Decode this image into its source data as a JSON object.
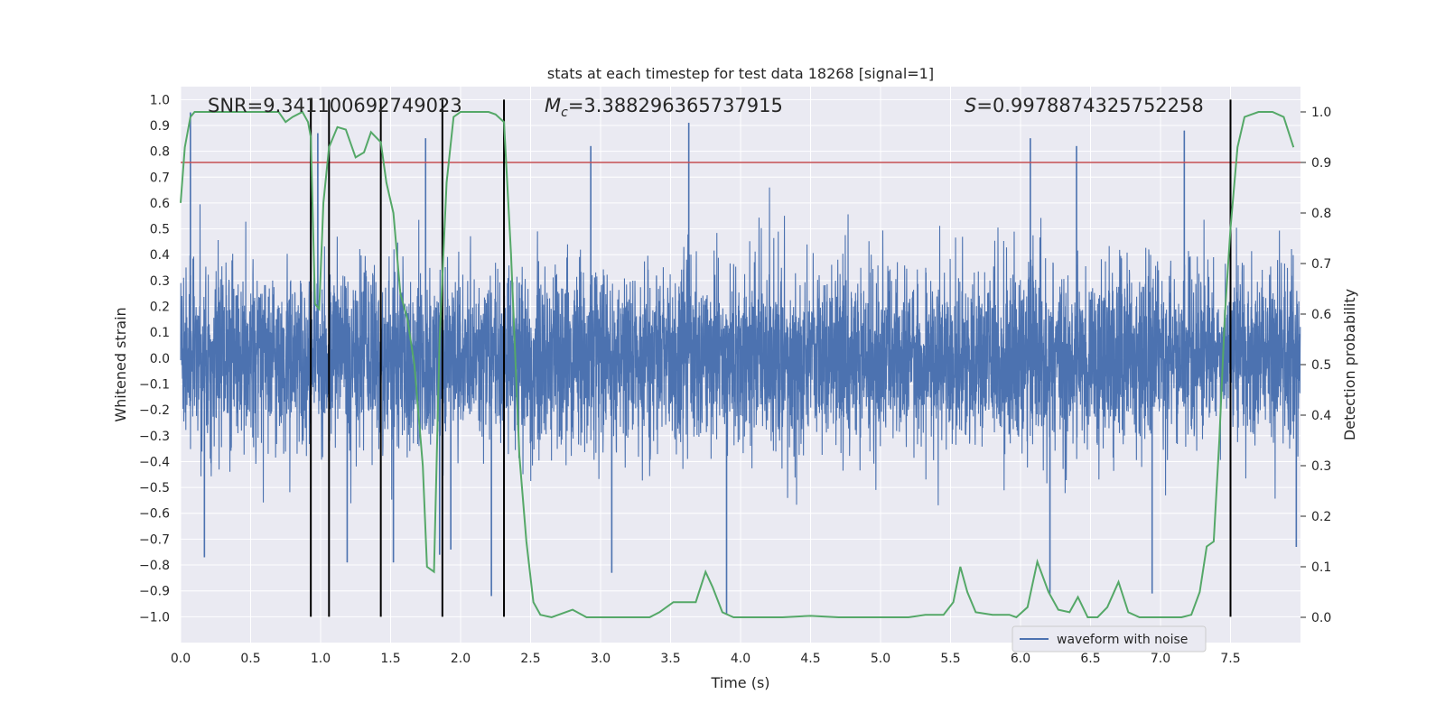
{
  "chart_data": {
    "type": "line",
    "title": "stats at each timestep for test data 18268 [signal=1]",
    "xlabel": "Time (s)",
    "ylabel": "Whitened strain",
    "y2label": "Detection probability",
    "xlim": [
      0.0,
      8.0
    ],
    "ylim": [
      -1.1,
      1.05
    ],
    "y2lim": [
      -0.05,
      1.05
    ],
    "x_ticks": [
      "0.0",
      "0.5",
      "1.0",
      "1.5",
      "2.0",
      "2.5",
      "3.0",
      "3.5",
      "4.0",
      "4.5",
      "5.0",
      "5.5",
      "6.0",
      "6.5",
      "7.0",
      "7.5"
    ],
    "y_ticks": [
      "1.0",
      "0.9",
      "0.8",
      "0.7",
      "0.6",
      "0.5",
      "0.4",
      "0.3",
      "0.2",
      "0.1",
      "0.0",
      "−0.1",
      "−0.2",
      "−0.3",
      "−0.4",
      "−0.5",
      "−0.6",
      "−0.7",
      "−0.8",
      "−0.9",
      "−1.0"
    ],
    "y2_ticks": [
      "1.0",
      "0.9",
      "0.8",
      "0.7",
      "0.6",
      "0.5",
      "0.4",
      "0.3",
      "0.2",
      "0.1",
      "0.0"
    ],
    "annotations": {
      "snr": "SNR=9.341100692749023",
      "mc_symbol": "M",
      "mc_sub": "c",
      "mc_value": "=3.388296365737915",
      "s_symbol": "S",
      "s_value": "=0.9978874325752258"
    },
    "legend": {
      "label": "waveform with noise",
      "position": "lower-right"
    },
    "threshold": 0.9,
    "event_lines_x": [
      0.93,
      1.06,
      1.43,
      1.87,
      2.31,
      7.5
    ],
    "event_line_range": [
      -1.0,
      1.0
    ],
    "noise": {
      "rms": 0.17,
      "seed": 18268
    },
    "strain_spikes": [
      {
        "x": 0.07,
        "y": 0.95
      },
      {
        "x": 0.17,
        "y": -0.77
      },
      {
        "x": 0.98,
        "y": 0.87
      },
      {
        "x": 1.19,
        "y": -0.79
      },
      {
        "x": 1.52,
        "y": -0.79
      },
      {
        "x": 1.75,
        "y": 0.85
      },
      {
        "x": 1.85,
        "y": -0.76
      },
      {
        "x": 1.93,
        "y": -0.74
      },
      {
        "x": 2.22,
        "y": -0.92
      },
      {
        "x": 2.93,
        "y": 0.82
      },
      {
        "x": 3.08,
        "y": -0.83
      },
      {
        "x": 3.63,
        "y": 0.91
      },
      {
        "x": 3.9,
        "y": -0.99
      },
      {
        "x": 6.07,
        "y": 0.85
      },
      {
        "x": 6.21,
        "y": -0.91
      },
      {
        "x": 6.4,
        "y": 0.82
      },
      {
        "x": 6.94,
        "y": -0.91
      },
      {
        "x": 7.17,
        "y": 0.88
      },
      {
        "x": 7.97,
        "y": -0.73
      }
    ],
    "probability": [
      [
        0.0,
        0.82
      ],
      [
        0.03,
        0.93
      ],
      [
        0.07,
        0.99
      ],
      [
        0.1,
        1.0
      ],
      [
        0.5,
        1.0
      ],
      [
        0.7,
        1.0
      ],
      [
        0.75,
        0.98
      ],
      [
        0.8,
        0.99
      ],
      [
        0.87,
        1.0
      ],
      [
        0.91,
        0.98
      ],
      [
        0.93,
        0.95
      ],
      [
        0.96,
        0.62
      ],
      [
        0.99,
        0.61
      ],
      [
        1.02,
        0.82
      ],
      [
        1.06,
        0.93
      ],
      [
        1.12,
        0.97
      ],
      [
        1.18,
        0.965
      ],
      [
        1.25,
        0.91
      ],
      [
        1.31,
        0.92
      ],
      [
        1.36,
        0.96
      ],
      [
        1.43,
        0.94
      ],
      [
        1.47,
        0.86
      ],
      [
        1.52,
        0.8
      ],
      [
        1.57,
        0.64
      ],
      [
        1.62,
        0.59
      ],
      [
        1.67,
        0.5
      ],
      [
        1.73,
        0.3
      ],
      [
        1.76,
        0.1
      ],
      [
        1.81,
        0.09
      ],
      [
        1.85,
        0.55
      ],
      [
        1.9,
        0.86
      ],
      [
        1.95,
        0.99
      ],
      [
        2.0,
        1.0
      ],
      [
        2.1,
        1.0
      ],
      [
        2.2,
        1.0
      ],
      [
        2.25,
        0.995
      ],
      [
        2.31,
        0.98
      ],
      [
        2.36,
        0.72
      ],
      [
        2.42,
        0.32
      ],
      [
        2.47,
        0.15
      ],
      [
        2.52,
        0.03
      ],
      [
        2.57,
        0.005
      ],
      [
        2.65,
        0.0
      ],
      [
        2.8,
        0.015
      ],
      [
        2.9,
        0.0
      ],
      [
        3.0,
        0.0
      ],
      [
        3.2,
        0.0
      ],
      [
        3.35,
        0.0
      ],
      [
        3.42,
        0.01
      ],
      [
        3.52,
        0.03
      ],
      [
        3.6,
        0.03
      ],
      [
        3.68,
        0.03
      ],
      [
        3.75,
        0.09
      ],
      [
        3.8,
        0.06
      ],
      [
        3.87,
        0.01
      ],
      [
        3.95,
        0.0
      ],
      [
        4.1,
        0.0
      ],
      [
        4.3,
        0.0
      ],
      [
        4.5,
        0.003
      ],
      [
        4.7,
        0.0
      ],
      [
        5.0,
        0.0
      ],
      [
        5.2,
        0.0
      ],
      [
        5.32,
        0.005
      ],
      [
        5.45,
        0.005
      ],
      [
        5.52,
        0.03
      ],
      [
        5.57,
        0.1
      ],
      [
        5.62,
        0.05
      ],
      [
        5.68,
        0.01
      ],
      [
        5.8,
        0.005
      ],
      [
        5.92,
        0.005
      ],
      [
        5.97,
        0.0
      ],
      [
        6.05,
        0.02
      ],
      [
        6.12,
        0.11
      ],
      [
        6.2,
        0.05
      ],
      [
        6.27,
        0.015
      ],
      [
        6.35,
        0.01
      ],
      [
        6.41,
        0.04
      ],
      [
        6.48,
        0.0
      ],
      [
        6.55,
        0.0
      ],
      [
        6.62,
        0.02
      ],
      [
        6.7,
        0.07
      ],
      [
        6.77,
        0.01
      ],
      [
        6.85,
        0.0
      ],
      [
        7.0,
        0.0
      ],
      [
        7.15,
        0.0
      ],
      [
        7.22,
        0.005
      ],
      [
        7.28,
        0.05
      ],
      [
        7.33,
        0.14
      ],
      [
        7.38,
        0.15
      ],
      [
        7.42,
        0.35
      ],
      [
        7.46,
        0.6
      ],
      [
        7.5,
        0.77
      ],
      [
        7.55,
        0.93
      ],
      [
        7.6,
        0.99
      ],
      [
        7.7,
        1.0
      ],
      [
        7.8,
        1.0
      ],
      [
        7.88,
        0.99
      ],
      [
        7.95,
        0.93
      ]
    ],
    "colors": {
      "background": "#ffffff",
      "plot_bg": "#eaeaf2",
      "grid": "#ffffff",
      "waveform": "#4c72b0",
      "probability": "#55a868",
      "threshold": "#c44e52",
      "event_lines": "#000000",
      "text": "#262626"
    }
  }
}
